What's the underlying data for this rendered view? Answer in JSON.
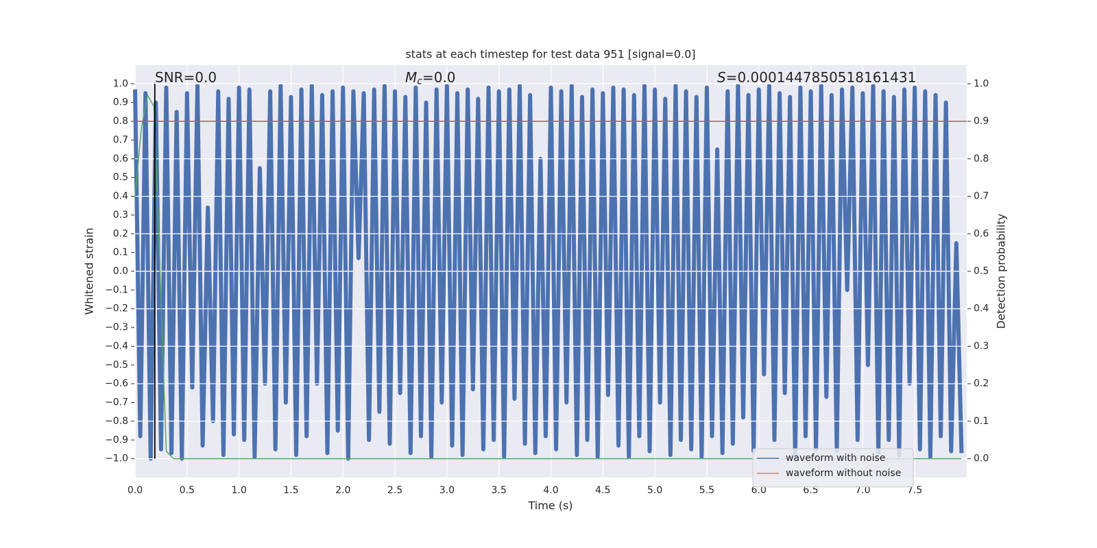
{
  "chart_data": {
    "type": "line",
    "title": "stats at each timestep for test data 951 [signal=0.0]",
    "xlabel": "Time (s)",
    "ylabel": "Whitened strain",
    "y2label": "Detection probability",
    "annotations": [
      {
        "text": "SNR=0.0"
      },
      {
        "symbol": "M",
        "subscript": "c",
        "text": "=0.0"
      },
      {
        "symbol": "S",
        "text": "=0.0001447850518161431"
      }
    ],
    "xlim": [
      0,
      8
    ],
    "ylim": [
      -1.1,
      1.1
    ],
    "y2lim": [
      -0.05,
      1.05
    ],
    "xticks": [
      {
        "value": 0,
        "label": "0.0"
      },
      0.5,
      {
        "value": 1,
        "label": "1.0"
      },
      1.5,
      {
        "value": 2,
        "label": "2.0"
      },
      2.5,
      {
        "value": 3,
        "label": "3.0"
      },
      3.5,
      {
        "value": 4,
        "label": "4.0"
      },
      4.5,
      {
        "value": 5,
        "label": "5.0"
      },
      5.5,
      {
        "value": 6,
        "label": "6.0"
      },
      6.5,
      {
        "value": 7,
        "label": "7.0"
      },
      7.5
    ],
    "yticks": [
      {
        "value": 1,
        "label": "1.0"
      },
      0.9,
      0.8,
      0.7,
      0.6,
      0.5,
      0.4,
      0.3,
      0.2,
      0.1,
      {
        "value": 0,
        "label": "0.0"
      },
      {
        "value": -0.1,
        "label": "−0.1"
      },
      {
        "value": -0.2,
        "label": "−0.2"
      },
      {
        "value": -0.3,
        "label": "−0.3"
      },
      {
        "value": -0.4,
        "label": "−0.4"
      },
      {
        "value": -0.5,
        "label": "−0.5"
      },
      {
        "value": -0.6,
        "label": "−0.6"
      },
      {
        "value": -0.7,
        "label": "−0.7"
      },
      {
        "value": -0.8,
        "label": "−0.8"
      },
      {
        "value": -0.9,
        "label": "−0.9"
      },
      {
        "value": -1,
        "label": "−1.0"
      }
    ],
    "y2ticks": [
      {
        "value": 0,
        "label": "0.0"
      },
      0.1,
      0.2,
      0.3,
      0.4,
      0.5,
      0.6,
      0.7,
      0.8,
      0.9,
      {
        "value": 1,
        "label": "1.0"
      }
    ],
    "grid": true,
    "legend": "lower right",
    "series": [
      {
        "name": "waveform with noise",
        "color": "#4c72b0",
        "x": [
          0,
          0.05,
          0.1,
          0.15,
          0.2,
          0.25,
          0.3,
          0.35,
          0.4,
          0.45,
          0.5,
          0.55,
          0.6,
          0.65,
          0.7,
          0.75,
          0.8,
          0.85,
          0.9,
          0.95,
          1,
          1.05,
          1.1,
          1.15,
          1.2,
          1.25,
          1.3,
          1.35,
          1.4,
          1.45,
          1.5,
          1.55,
          1.6,
          1.65,
          1.7,
          1.75,
          1.8,
          1.85,
          1.9,
          1.95,
          2,
          2.05,
          2.1,
          2.15,
          2.2,
          2.25,
          2.3,
          2.35,
          2.4,
          2.45,
          2.5,
          2.55,
          2.6,
          2.65,
          2.7,
          2.75,
          2.8,
          2.85,
          2.9,
          2.95,
          3,
          3.05,
          3.1,
          3.15,
          3.2,
          3.25,
          3.3,
          3.35,
          3.4,
          3.45,
          3.5,
          3.55,
          3.6,
          3.65,
          3.7,
          3.75,
          3.8,
          3.85,
          3.9,
          3.95,
          4,
          4.05,
          4.1,
          4.15,
          4.2,
          4.25,
          4.3,
          4.35,
          4.4,
          4.45,
          4.5,
          4.55,
          4.6,
          4.65,
          4.7,
          4.75,
          4.8,
          4.85,
          4.9,
          4.95,
          5,
          5.05,
          5.1,
          5.15,
          5.2,
          5.25,
          5.3,
          5.35,
          5.4,
          5.45,
          5.5,
          5.55,
          5.6,
          5.65,
          5.7,
          5.75,
          5.8,
          5.85,
          5.9,
          5.95,
          6,
          6.05,
          6.1,
          6.15,
          6.2,
          6.25,
          6.3,
          6.35,
          6.4,
          6.45,
          6.5,
          6.55,
          6.6,
          6.65,
          6.7,
          6.75,
          6.8,
          6.85,
          6.9,
          6.95,
          7,
          7.05,
          7.1,
          7.15,
          7.2,
          7.25,
          7.3,
          7.35,
          7.4,
          7.45,
          7.5,
          7.55,
          7.6,
          7.65,
          7.7,
          7.75,
          7.8,
          7.85,
          7.9,
          7.95
        ],
        "values": [
          0.97,
          -0.88,
          0.95,
          -1.0,
          0.9,
          -0.95,
          0.98,
          -0.97,
          0.85,
          -1.0,
          0.95,
          -0.62,
          0.99,
          -0.93,
          0.34,
          -0.8,
          0.96,
          -0.98,
          0.92,
          -0.87,
          0.98,
          -0.9,
          0.97,
          -0.99,
          0.55,
          -0.6,
          0.96,
          -0.95,
          0.99,
          -0.7,
          0.93,
          -0.98,
          0.97,
          -0.88,
          0.99,
          -0.6,
          0.94,
          -0.97,
          0.96,
          -0.85,
          0.98,
          -1.0,
          0.96,
          0.07,
          0.95,
          -0.9,
          0.97,
          -0.75,
          0.99,
          -0.92,
          0.96,
          -0.65,
          0.93,
          -0.97,
          0.98,
          -0.88,
          0.9,
          -0.99,
          0.97,
          -0.7,
          0.99,
          -0.93,
          0.95,
          -0.98,
          0.97,
          -0.63,
          0.92,
          -0.95,
          0.98,
          -0.9,
          0.96,
          -0.99,
          0.97,
          -0.68,
          0.99,
          -0.92,
          0.94,
          -0.97,
          0.6,
          -0.88,
          0.98,
          -0.95,
          0.96,
          -0.7,
          0.99,
          -0.98,
          0.93,
          -0.9,
          0.97,
          -0.99,
          0.95,
          -0.66,
          0.98,
          -0.93,
          0.97,
          -0.99,
          0.94,
          -0.88,
          0.99,
          -0.96,
          0.97,
          -0.7,
          0.92,
          -0.98,
          0.99,
          -0.9,
          0.96,
          -0.95,
          0.93,
          -0.99,
          0.98,
          -0.88,
          0.65,
          -0.97,
          0.96,
          -0.92,
          0.99,
          -0.78,
          0.94,
          -0.96,
          0.97,
          -0.55,
          0.99,
          -0.9,
          0.95,
          -0.65,
          0.93,
          -0.99,
          0.98,
          -0.88,
          0.96,
          -0.95,
          0.99,
          -0.67,
          0.94,
          -0.96,
          0.97,
          -0.1,
          0.98,
          -0.9,
          0.95,
          -0.5,
          0.99,
          -0.97,
          0.96,
          -0.9,
          0.93,
          -0.98,
          0.97,
          -0.6,
          0.98,
          -0.95,
          0.96,
          -0.99,
          0.94,
          -0.88,
          0.9,
          -0.96,
          0.15,
          -0.97
        ]
      },
      {
        "name": "waveform without noise",
        "color": "#dd8452",
        "x": [
          0,
          7.95
        ],
        "values": [
          0,
          0
        ]
      },
      {
        "color": "#55a868",
        "axis": "y2",
        "x": [
          0,
          0.06,
          0.12,
          0.18,
          0.24,
          0.3,
          0.37,
          7.95
        ],
        "values": [
          0.7,
          0.88,
          0.97,
          0.94,
          0.5,
          0.02,
          0,
          0
        ]
      }
    ],
    "hlines": [
      {
        "value": 0.9,
        "axis": "y2",
        "color": "#c44e52"
      }
    ],
    "vlines": [
      {
        "value": 0.19,
        "ymin": -1,
        "ymax": 1,
        "color": "#000000"
      }
    ]
  }
}
